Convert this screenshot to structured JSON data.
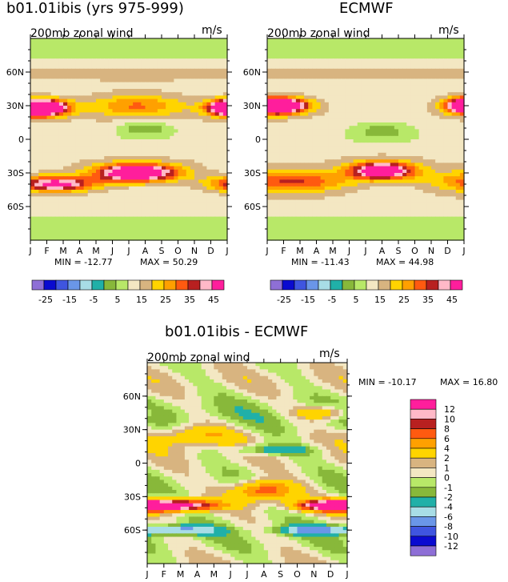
{
  "palette": {
    "absolute": [
      "#8e6fd6",
      "#0a0ad0",
      "#3f55e0",
      "#6a96e8",
      "#a8dde6",
      "#20b0a8",
      "#88b83a",
      "#b8e868",
      "#f3e7c2",
      "#d8b480",
      "#ffd400",
      "#ffa000",
      "#ff5a10",
      "#b82020",
      "#ffb9c8",
      "#ff1e9c"
    ],
    "difference": [
      "#8e6fd6",
      "#0a0ad0",
      "#3f55e0",
      "#6a96e8",
      "#a8dde6",
      "#20b0a8",
      "#88b83a",
      "#b8e868",
      "#f3e7c2",
      "#d8b480",
      "#ffd400",
      "#ffa000",
      "#ff5a10",
      "#b82020",
      "#ffb9c8",
      "#ff1e9c"
    ]
  },
  "chart_data": [
    {
      "type": "heatmap",
      "panel": "model",
      "title": "b01.01ibis (yrs 975-999)",
      "subtitle_left": "200mb zonal wind",
      "subtitle_right": "m/s",
      "x": [
        "J",
        "F",
        "M",
        "A",
        "M",
        "J",
        "J",
        "A",
        "S",
        "O",
        "N",
        "D",
        "J"
      ],
      "y_ticks": [
        "60N",
        "30N",
        "0",
        "30S",
        "60S"
      ],
      "y_values": [
        60,
        30,
        0,
        -30,
        -60
      ],
      "ylim": [
        -90,
        90
      ],
      "min_label": "MIN = -12.77",
      "max_label": "MAX =  50.29",
      "min": -12.77,
      "max": 50.29,
      "features": [
        {
          "lat": 28,
          "month": 1.0,
          "amp": 45,
          "lat_w": 7,
          "mon_w": 1.4
        },
        {
          "lat": 28,
          "month": 12.0,
          "amp": 42,
          "lat_w": 7,
          "mon_w": 1.3
        },
        {
          "lat": 30,
          "month": 6.5,
          "amp": 18,
          "lat_w": 10,
          "mon_w": 3.0
        },
        {
          "lat": -30,
          "month": 6.5,
          "amp": 50,
          "lat_w": 8,
          "mon_w": 2.5
        },
        {
          "lat": -40,
          "month": 1.5,
          "amp": 38,
          "lat_w": 7,
          "mon_w": 2.5
        },
        {
          "lat": 10,
          "month": 7.0,
          "amp": -12,
          "lat_w": 7,
          "mon_w": 1.5
        }
      ]
    },
    {
      "type": "heatmap",
      "panel": "observed",
      "title": "ECMWF",
      "subtitle_left": "200mb zonal wind",
      "subtitle_right": "m/s",
      "x": [
        "J",
        "F",
        "M",
        "A",
        "M",
        "J",
        "J",
        "A",
        "S",
        "O",
        "N",
        "D",
        "J"
      ],
      "y_ticks": [
        "60N",
        "30N",
        "0",
        "30S",
        "60S"
      ],
      "y_values": [
        60,
        30,
        0,
        -30,
        -60
      ],
      "ylim": [
        -90,
        90
      ],
      "min_label": "MIN = -11.43",
      "max_label": "MAX =  44.98",
      "min": -11.43,
      "max": 44.98,
      "features": [
        {
          "lat": 30,
          "month": 1.2,
          "amp": 42,
          "lat_w": 7,
          "mon_w": 1.5
        },
        {
          "lat": 30,
          "month": 12.0,
          "amp": 40,
          "lat_w": 7,
          "mon_w": 1.3
        },
        {
          "lat": -28,
          "month": 7.0,
          "amp": 45,
          "lat_w": 8,
          "mon_w": 2.0
        },
        {
          "lat": -38,
          "month": 1.5,
          "amp": 25,
          "lat_w": 10,
          "mon_w": 3.5
        },
        {
          "lat": 8,
          "month": 7.0,
          "amp": -11,
          "lat_w": 8,
          "mon_w": 1.7
        }
      ]
    },
    {
      "type": "heatmap",
      "panel": "difference",
      "title": "b01.01ibis - ECMWF",
      "subtitle_left": "200mb zonal wind",
      "subtitle_right": "m/s",
      "x": [
        "J",
        "F",
        "M",
        "A",
        "M",
        "J",
        "J",
        "A",
        "S",
        "O",
        "N",
        "D",
        "J"
      ],
      "y_ticks": [
        "60N",
        "30N",
        "0",
        "30S",
        "60S"
      ],
      "y_values": [
        60,
        30,
        0,
        -30,
        -60
      ],
      "ylim": [
        -90,
        90
      ],
      "min_label": "MIN = -10.17",
      "max_label": "MAX =  16.80",
      "min": -10.17,
      "max": 16.8,
      "features": [
        {
          "lat": -38,
          "month": 1.5,
          "amp": 16,
          "lat_w": 5,
          "mon_w": 2.5
        },
        {
          "lat": -38,
          "month": 11.0,
          "amp": 13,
          "lat_w": 5,
          "mon_w": 2.0
        },
        {
          "lat": -25,
          "month": 7.0,
          "amp": 8,
          "lat_w": 9,
          "mon_w": 1.8
        },
        {
          "lat": -60,
          "month": 2.0,
          "amp": -7,
          "lat_w": 4,
          "mon_w": 2.0
        },
        {
          "lat": -60,
          "month": 10.0,
          "amp": -7,
          "lat_w": 4,
          "mon_w": 2.0
        },
        {
          "lat": 25,
          "month": 3.0,
          "amp": 4,
          "lat_w": 10,
          "mon_w": 2.5
        },
        {
          "lat": 45,
          "month": 10.5,
          "amp": 5,
          "lat_w": 6,
          "mon_w": 1.5
        },
        {
          "lat": 12,
          "month": 7.5,
          "amp": -4,
          "lat_w": 5,
          "mon_w": 2.5
        }
      ]
    }
  ],
  "colorbar_absolute": {
    "labels": [
      "-25",
      "-15",
      "-5",
      "5",
      "15",
      "25",
      "35",
      "45"
    ],
    "levels": [
      -30,
      -25,
      -20,
      -15,
      -10,
      -5,
      0,
      5,
      10,
      15,
      20,
      25,
      30,
      35,
      40,
      45
    ]
  },
  "colorbar_difference": {
    "labels": [
      "12",
      "10",
      "8",
      "6",
      "4",
      "2",
      "1",
      "0",
      "-1",
      "-2",
      "-4",
      "-6",
      "-8",
      "-10",
      "-12"
    ],
    "levels": [
      -12,
      -10,
      -8,
      -6,
      -4,
      -2,
      -1,
      0,
      1,
      2,
      4,
      6,
      8,
      10,
      12
    ]
  }
}
